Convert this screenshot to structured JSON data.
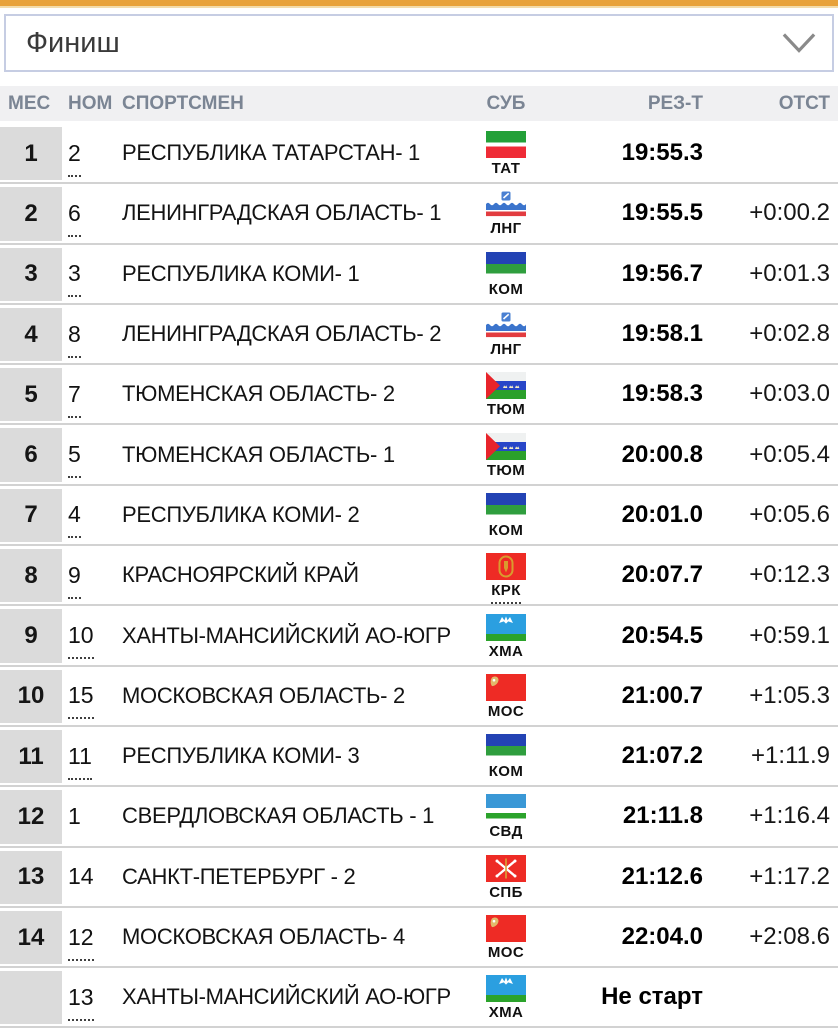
{
  "colors": {
    "accent_bar": "#E8A23B",
    "accent_bar_light": "#F3DCAB",
    "select_border": "#C6CDE3",
    "header_bg": "#F0F0F2",
    "header_text": "#7B8594",
    "place_cell_bg": "#DBDBDB"
  },
  "filter": {
    "selected": "Финиш"
  },
  "table": {
    "columns": [
      {
        "key": "place",
        "label": "МЕС"
      },
      {
        "key": "bib",
        "label": "НОМ"
      },
      {
        "key": "name",
        "label": "СПОРТСМЕН"
      },
      {
        "key": "region",
        "label": "СУБ"
      },
      {
        "key": "result",
        "label": "РЕЗ-Т"
      },
      {
        "key": "gap",
        "label": "ОТСТ"
      }
    ],
    "rows": [
      {
        "place": "1",
        "bib": "2",
        "name": "РЕСПУБЛИКА ТАТАРСТАН- 1",
        "region_code": "ТАТ",
        "flag": "tatarstan-flag",
        "result": "19:55.3",
        "gap": "",
        "linked": true,
        "region_linked": false
      },
      {
        "place": "2",
        "bib": "6",
        "name": "ЛЕНИНГРАДСКАЯ ОБЛАСТЬ- 1",
        "region_code": "ЛНГ",
        "flag": "leningrad-flag",
        "result": "19:55.5",
        "gap": "+0:00.2",
        "linked": true,
        "region_linked": false
      },
      {
        "place": "3",
        "bib": "3",
        "name": "РЕСПУБЛИКА КОМИ- 1",
        "region_code": "КОМ",
        "flag": "komi-flag",
        "result": "19:56.7",
        "gap": "+0:01.3",
        "linked": true,
        "region_linked": false
      },
      {
        "place": "4",
        "bib": "8",
        "name": "ЛЕНИНГРАДСКАЯ ОБЛАСТЬ- 2",
        "region_code": "ЛНГ",
        "flag": "leningrad-flag",
        "result": "19:58.1",
        "gap": "+0:02.8",
        "linked": true,
        "region_linked": false
      },
      {
        "place": "5",
        "bib": "7",
        "name": "ТЮМЕНСКАЯ ОБЛАСТЬ- 2",
        "region_code": "ТЮМ",
        "flag": "tyumen-flag",
        "result": "19:58.3",
        "gap": "+0:03.0",
        "linked": true,
        "region_linked": false
      },
      {
        "place": "6",
        "bib": "5",
        "name": "ТЮМЕНСКАЯ ОБЛАСТЬ- 1",
        "region_code": "ТЮМ",
        "flag": "tyumen-flag",
        "result": "20:00.8",
        "gap": "+0:05.4",
        "linked": true,
        "region_linked": false
      },
      {
        "place": "7",
        "bib": "4",
        "name": "РЕСПУБЛИКА КОМИ- 2",
        "region_code": "КОМ",
        "flag": "komi-flag",
        "result": "20:01.0",
        "gap": "+0:05.6",
        "linked": true,
        "region_linked": false
      },
      {
        "place": "8",
        "bib": "9",
        "name": "КРАСНОЯРСКИЙ КРАЙ",
        "region_code": "КРК",
        "flag": "krasnoyarsk-flag",
        "result": "20:07.7",
        "gap": "+0:12.3",
        "linked": true,
        "region_linked": true
      },
      {
        "place": "9",
        "bib": "10",
        "name": "ХАНТЫ-МАНСИЙСКИЙ АО-ЮГР",
        "region_code": "ХМА",
        "flag": "ugra-flag",
        "result": "20:54.5",
        "gap": "+0:59.1",
        "linked": true,
        "region_linked": false
      },
      {
        "place": "10",
        "bib": "15",
        "name": "МОСКОВСКАЯ ОБЛАСТЬ- 2",
        "region_code": "МОС",
        "flag": "moscow-obl-flag",
        "result": "21:00.7",
        "gap": "+1:05.3",
        "linked": true,
        "region_linked": false
      },
      {
        "place": "11",
        "bib": "11",
        "name": "РЕСПУБЛИКА КОМИ- 3",
        "region_code": "КОМ",
        "flag": "komi-flag",
        "result": "21:07.2",
        "gap": "+1:11.9",
        "linked": true,
        "region_linked": false
      },
      {
        "place": "12",
        "bib": "1",
        "name": "СВЕРДЛОВСКАЯ ОБЛАСТЬ - 1",
        "region_code": "СВД",
        "flag": "sverdlovsk-flag",
        "result": "21:11.8",
        "gap": "+1:16.4",
        "linked": false,
        "region_linked": false
      },
      {
        "place": "13",
        "bib": "14",
        "name": "САНКТ-ПЕТЕРБУРГ - 2",
        "region_code": "СПБ",
        "flag": "spb-flag",
        "result": "21:12.6",
        "gap": "+1:17.2",
        "linked": false,
        "region_linked": false
      },
      {
        "place": "14",
        "bib": "12",
        "name": "МОСКОВСКАЯ ОБЛАСТЬ- 4",
        "region_code": "МОС",
        "flag": "moscow-obl-flag",
        "result": "22:04.0",
        "gap": "+2:08.6",
        "linked": true,
        "region_linked": false
      },
      {
        "place": "",
        "bib": "13",
        "name": "ХАНТЫ-МАНСИЙСКИЙ АО-ЮГР",
        "region_code": "ХМА",
        "flag": "ugra-flag",
        "result": "Не старт",
        "gap": "",
        "linked": true,
        "region_linked": false
      }
    ]
  }
}
